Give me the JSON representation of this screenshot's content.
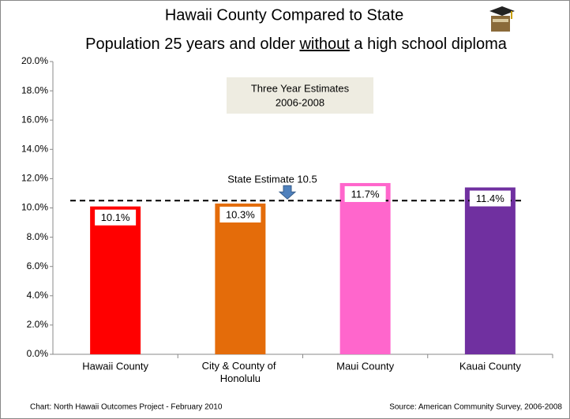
{
  "chart_data": {
    "type": "bar",
    "title": "Hawaii County Compared to State",
    "subtitle_parts": [
      "Population 25 years and older",
      "without",
      "a high school diploma"
    ],
    "annotation": [
      "Three Year Estimates",
      "2006-2008"
    ],
    "reference": {
      "label": "State Estimate 10.5",
      "value": 10.5
    },
    "categories": [
      "Hawaii County",
      "City & County of Honolulu",
      "Maui County",
      "Kauai County"
    ],
    "values": [
      10.1,
      10.3,
      11.7,
      11.4
    ],
    "value_labels": [
      "10.1%",
      "10.3%",
      "11.7%",
      "11.4%"
    ],
    "colors": [
      "#ff0000",
      "#e46c0a",
      "#ff66cc",
      "#7030a0"
    ],
    "ylim": [
      0,
      20
    ],
    "yticks": [
      {
        "value": 0,
        "label": "0.0%"
      },
      {
        "value": 2,
        "label": "2.0%"
      },
      {
        "value": 4,
        "label": "4.0%"
      },
      {
        "value": 6,
        "label": "6.0%"
      },
      {
        "value": 8,
        "label": "8.0%"
      },
      {
        "value": 10,
        "label": "10.0%"
      },
      {
        "value": 12,
        "label": "12.0%"
      },
      {
        "value": 14,
        "label": "14.0%"
      },
      {
        "value": 16,
        "label": "16.0%"
      },
      {
        "value": 18,
        "label": "18.0%"
      },
      {
        "value": 20,
        "label": "20.0%"
      }
    ],
    "footer_left": "Chart: North Hawaii Outcomes Project - February 2010",
    "footer_right": "Source:  American Community Survey, 2006-2008"
  }
}
